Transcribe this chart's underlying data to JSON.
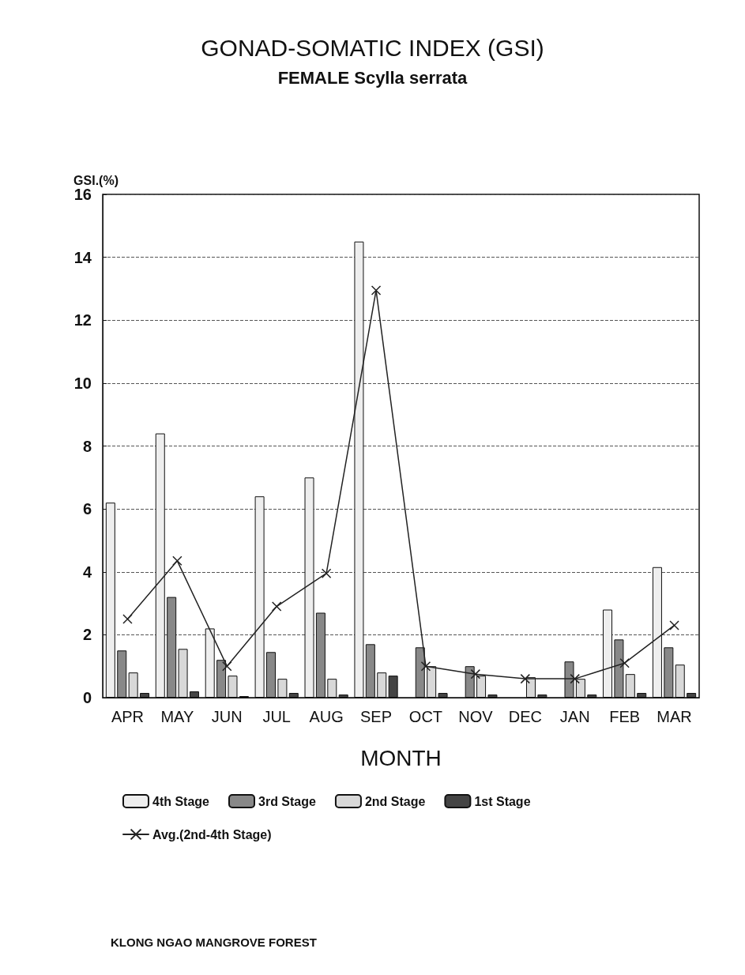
{
  "chart_data": {
    "type": "bar",
    "title": "GONAD-SOMATIC INDEX (GSI)",
    "subtitle": "FEMALE Scylla serrata",
    "xlabel": "MONTH",
    "ylabel": "GSI.(%)",
    "categories": [
      "APR",
      "MAY",
      "JUN",
      "JUL",
      "AUG",
      "SEP",
      "OCT",
      "NOV",
      "DEC",
      "JAN",
      "FEB",
      "MAR"
    ],
    "series": [
      {
        "name": "4th Stage",
        "color": "#eeeeee",
        "values": [
          6.2,
          8.4,
          2.2,
          6.4,
          7.0,
          14.5,
          null,
          null,
          null,
          null,
          2.8,
          4.15
        ]
      },
      {
        "name": "3rd Stage",
        "color": "#888888",
        "values": [
          1.5,
          3.2,
          1.2,
          1.45,
          2.7,
          1.7,
          1.6,
          1.0,
          null,
          1.15,
          1.85,
          1.6
        ]
      },
      {
        "name": "2nd Stage",
        "color": "#d8d8d8",
        "values": [
          0.8,
          1.55,
          0.7,
          0.6,
          0.6,
          0.8,
          1.0,
          0.7,
          0.65,
          0.6,
          0.75,
          1.05
        ]
      },
      {
        "name": "1st Stage",
        "color": "#444444",
        "values": [
          0.15,
          0.2,
          0.05,
          0.15,
          0.1,
          0.7,
          0.15,
          0.1,
          0.1,
          0.1,
          0.15,
          0.15
        ]
      },
      {
        "name": "Avg.(2nd-4th Stage)",
        "type": "line",
        "color": "#222222",
        "marker": "cross",
        "line_style": "solid",
        "values": [
          2.5,
          4.35,
          1.0,
          2.9,
          3.95,
          12.95,
          1.0,
          0.75,
          0.6,
          0.6,
          1.1,
          2.3
        ]
      }
    ],
    "ylim": [
      0,
      16
    ],
    "yticks": [
      0,
      2,
      4,
      6,
      8,
      10,
      12,
      14,
      16
    ],
    "grid": "y",
    "legend": "bottom",
    "annotations": [
      "KLONG NGAO MANGROVE FOREST"
    ]
  }
}
